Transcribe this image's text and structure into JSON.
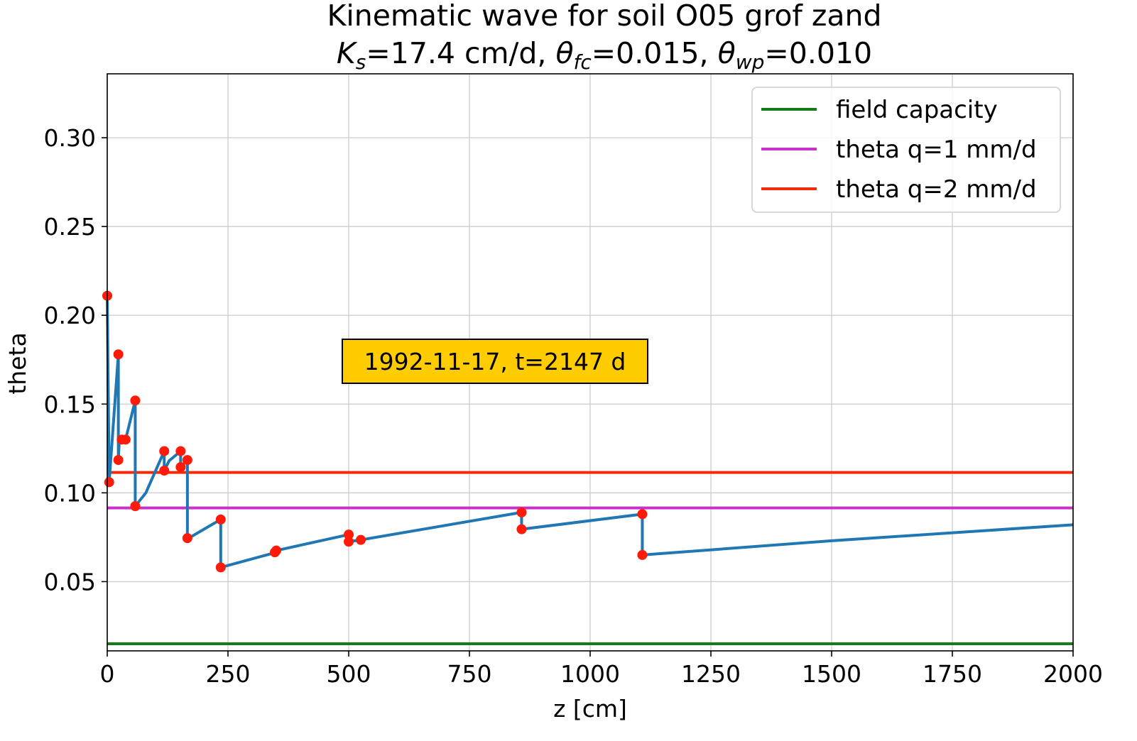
{
  "chart_data": {
    "type": "line",
    "title_line1": "Kinematic wave for soil O05 grof zand",
    "title_line2": {
      "ks_sym": "K",
      "ks_sub": "s",
      "ks_val": "=17.4 cm/d, ",
      "fc_sym": "θ",
      "fc_sub": "fc",
      "fc_val": "=0.015, ",
      "wp_sym": "θ",
      "wp_sub": "wp",
      "wp_val": "=0.010"
    },
    "xlabel": "z [cm]",
    "ylabel": "theta",
    "xlim": [
      0,
      2000
    ],
    "ylim": [
      0.011,
      0.336
    ],
    "xticks": [
      0,
      250,
      500,
      750,
      1000,
      1250,
      1500,
      1750,
      2000
    ],
    "xtick_labels": [
      "0",
      "250",
      "500",
      "750",
      "1000",
      "1250",
      "1500",
      "1750",
      "2000"
    ],
    "yticks": [
      0.05,
      0.1,
      0.15,
      0.2,
      0.25,
      0.3
    ],
    "ytick_labels": [
      "0.05",
      "0.10",
      "0.15",
      "0.20",
      "0.25",
      "0.30"
    ],
    "grid": true,
    "legend_position": "top-right",
    "annotation": "1992-11-17, t=2147 d",
    "hlines": [
      {
        "name": "field capacity",
        "y": 0.015,
        "color": "#167a16"
      },
      {
        "name": "theta q=1 mm/d",
        "y": 0.0915,
        "color": "#c832c8"
      },
      {
        "name": "theta q=2 mm/d",
        "y": 0.1115,
        "color": "#f52a0a"
      }
    ],
    "profile": {
      "color": "#1f77b4",
      "x": [
        0,
        4,
        23,
        23,
        25,
        30,
        38,
        58,
        58,
        80,
        118,
        118,
        128,
        152,
        152,
        166,
        166,
        172,
        235,
        235,
        350,
        350,
        500,
        500,
        525,
        858,
        858,
        1108,
        1108,
        1500,
        2000
      ],
      "y": [
        0.211,
        0.106,
        0.178,
        0.1185,
        0.13,
        0.13,
        0.13,
        0.152,
        0.0925,
        0.1,
        0.1235,
        0.1125,
        0.118,
        0.1235,
        0.1145,
        0.1185,
        0.0745,
        0.075,
        0.085,
        0.058,
        0.0665,
        0.0675,
        0.0765,
        0.0725,
        0.0735,
        0.089,
        0.0795,
        0.088,
        0.065,
        0.073,
        0.082
      ]
    },
    "markers": {
      "color": "#ff1a0a",
      "x": [
        0,
        4,
        23,
        23,
        30,
        38,
        58,
        58,
        118,
        118,
        152,
        152,
        166,
        166,
        235,
        235,
        347,
        350,
        500,
        500,
        525,
        858,
        858,
        1108,
        1108
      ],
      "y": [
        0.211,
        0.106,
        0.178,
        0.1185,
        0.13,
        0.13,
        0.152,
        0.0925,
        0.1235,
        0.1125,
        0.1235,
        0.1145,
        0.1185,
        0.0745,
        0.085,
        0.058,
        0.0665,
        0.0675,
        0.0765,
        0.0725,
        0.0735,
        0.089,
        0.0795,
        0.088,
        0.065
      ]
    }
  }
}
